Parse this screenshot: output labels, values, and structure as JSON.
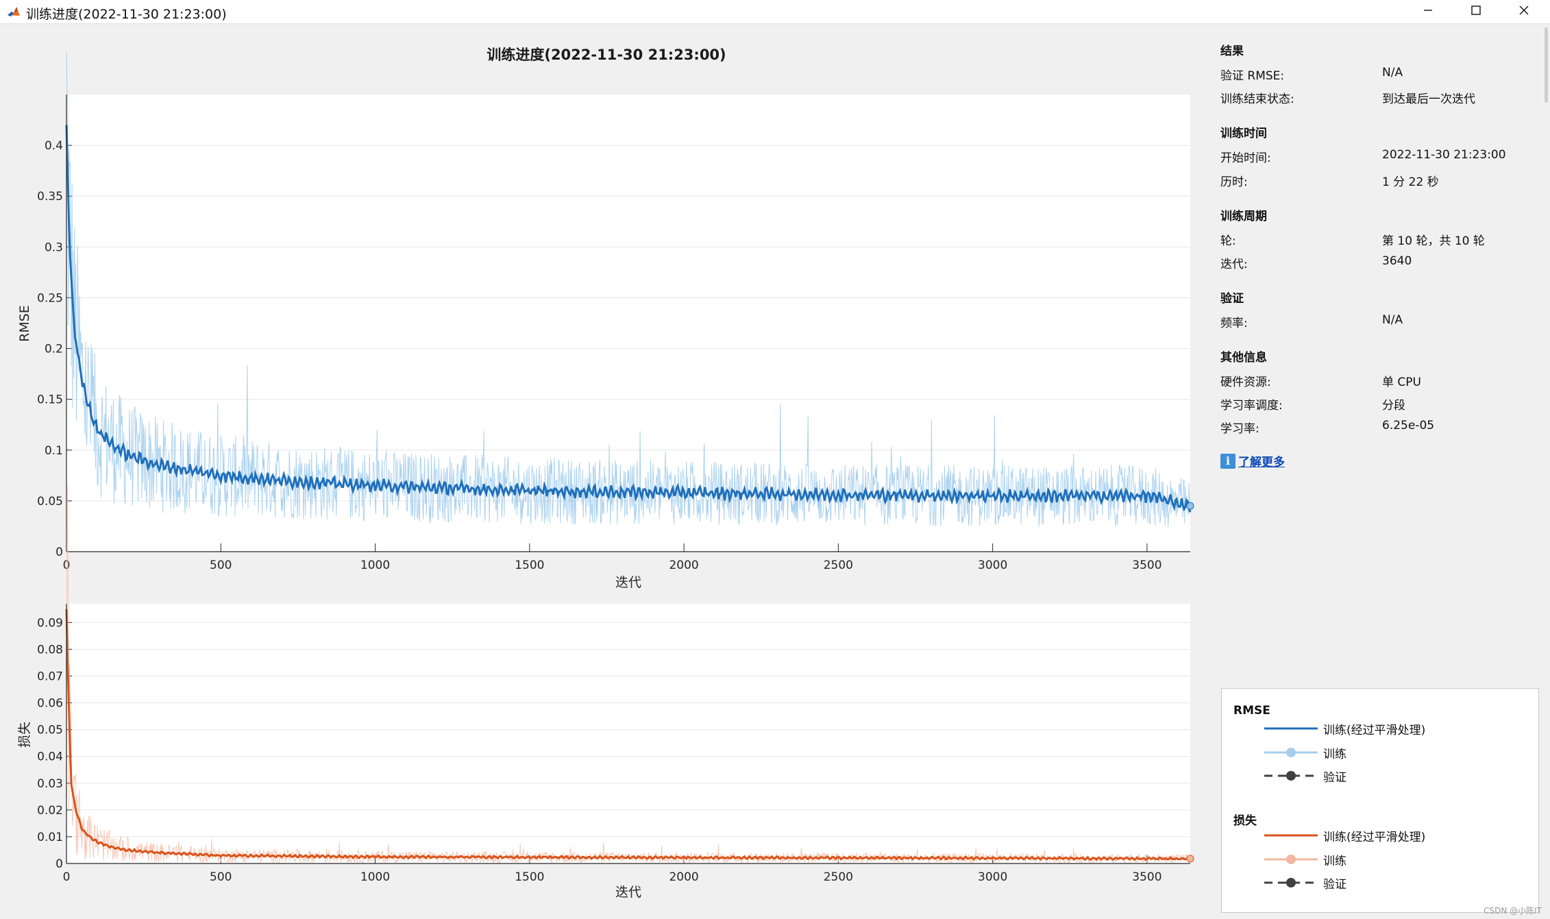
{
  "window": {
    "title": "训练进度(2022-11-30 21:23:00)",
    "icon": "matlab-icon",
    "minimize_icon": "minimize-icon",
    "maximize_icon": "maximize-icon",
    "close_icon": "close-icon"
  },
  "plot_title": "训练进度(2022-11-30 21:23:00)",
  "chart_data": [
    {
      "type": "line",
      "ylabel": "RMSE",
      "xlabel": "迭代",
      "xlim": [
        0,
        3640
      ],
      "ylim": [
        0,
        0.45
      ],
      "x_ticks": [
        0,
        500,
        1000,
        1500,
        2000,
        2500,
        3000,
        3500
      ],
      "y_ticks": [
        0,
        0.05,
        0.1,
        0.15,
        0.2,
        0.25,
        0.3,
        0.35,
        0.4
      ],
      "y_tick_labels": [
        "0",
        "0.05",
        "0.1",
        "0.15",
        "0.2",
        "0.25",
        "0.3",
        "0.35",
        "0.4"
      ],
      "grid": true,
      "series": [
        {
          "name": "训练(经过平滑处理)",
          "color": "#1f6fba",
          "x": [
            0,
            10,
            25,
            50,
            75,
            100,
            150,
            200,
            300,
            400,
            500,
            700,
            1000,
            1500,
            2000,
            2500,
            3000,
            3500,
            3640
          ],
          "y": [
            0.42,
            0.3,
            0.22,
            0.17,
            0.14,
            0.12,
            0.105,
            0.095,
            0.085,
            0.08,
            0.075,
            0.07,
            0.065,
            0.06,
            0.058,
            0.056,
            0.055,
            0.055,
            0.045
          ]
        },
        {
          "name": "训练",
          "color": "#8fc3ea",
          "noise_base": 0.05,
          "x_range": [
            0,
            3640
          ]
        },
        {
          "name": "验证"
        }
      ]
    },
    {
      "type": "line",
      "ylabel": "损失",
      "xlabel": "迭代",
      "xlim": [
        0,
        3640
      ],
      "ylim": [
        0,
        0.097
      ],
      "x_ticks": [
        0,
        500,
        1000,
        1500,
        2000,
        2500,
        3000,
        3500
      ],
      "y_ticks": [
        0,
        0.01,
        0.02,
        0.03,
        0.04,
        0.05,
        0.06,
        0.07,
        0.08,
        0.09
      ],
      "y_tick_labels": [
        "0",
        "0.01",
        "0.02",
        "0.03",
        "0.04",
        "0.05",
        "0.06",
        "0.07",
        "0.08",
        "0.09"
      ],
      "grid": true,
      "series": [
        {
          "name": "训练(经过平滑处理)",
          "color": "#d95319",
          "x": [
            0,
            5,
            15,
            30,
            50,
            75,
            100,
            150,
            200,
            300,
            500,
            1000,
            2000,
            3000,
            3640
          ],
          "y": [
            0.095,
            0.07,
            0.03,
            0.02,
            0.013,
            0.01,
            0.008,
            0.006,
            0.005,
            0.004,
            0.003,
            0.0025,
            0.0022,
            0.002,
            0.0018
          ]
        },
        {
          "name": "训练",
          "color": "#f3b79f",
          "x_range": [
            0,
            3640
          ]
        },
        {
          "name": "验证"
        }
      ]
    }
  ],
  "info": {
    "results": {
      "title": "结果",
      "rows": [
        {
          "label": "验证 RMSE:",
          "value": "N/A"
        },
        {
          "label": "训练结束状态:",
          "value": "到达最后一次迭代"
        }
      ]
    },
    "time": {
      "title": "训练时间",
      "rows": [
        {
          "label": "开始时间:",
          "value": "2022-11-30 21:23:00"
        },
        {
          "label": "历时:",
          "value": "1 分 22 秒"
        }
      ]
    },
    "cycle": {
      "title": "训练周期",
      "rows": [
        {
          "label": "轮:",
          "value": "第 10 轮，共 10 轮"
        },
        {
          "label": "迭代:",
          "value": "3640"
        }
      ]
    },
    "validation": {
      "title": "验证",
      "rows": [
        {
          "label": "频率:",
          "value": "N/A"
        }
      ]
    },
    "other": {
      "title": "其他信息",
      "rows": [
        {
          "label": "硬件资源:",
          "value": "单 CPU"
        },
        {
          "label": "学习率调度:",
          "value": "分段"
        },
        {
          "label": "学习率:",
          "value": "6.25e-05"
        }
      ]
    },
    "learn_more": "了解更多"
  },
  "legend": {
    "rmse_heading": "RMSE",
    "loss_heading": "损失",
    "items": [
      "训练(经过平滑处理)",
      "训练",
      "验证"
    ],
    "colors": {
      "rmse_smoothed": "#1f6fba",
      "rmse_raw": "#a6cdec",
      "loss_smoothed": "#d95319",
      "loss_raw": "#f2b8a1",
      "validation": "#404040"
    }
  },
  "watermark": "CSDN @小陈IT"
}
